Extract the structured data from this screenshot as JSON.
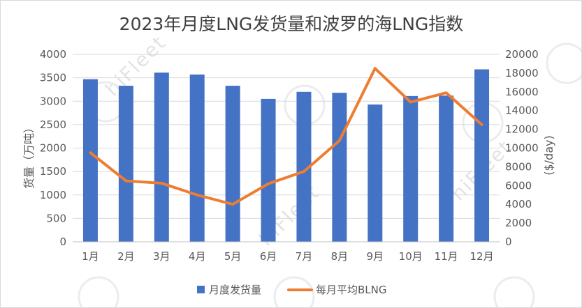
{
  "chart_data": {
    "type": "bar",
    "title": "2023年月度LNG发货量和波罗的海LNG指数",
    "categories": [
      "1月",
      "2月",
      "3月",
      "4月",
      "5月",
      "6月",
      "7月",
      "8月",
      "9月",
      "10月",
      "11月",
      "12月"
    ],
    "series": [
      {
        "name": "月度发货量",
        "type": "bar",
        "axis": "left",
        "color": "#4472C4",
        "values": [
          3470,
          3330,
          3610,
          3570,
          3330,
          3050,
          3200,
          3180,
          2930,
          3110,
          3120,
          3680
        ]
      },
      {
        "name": "每月平均BLNG",
        "type": "line",
        "axis": "right",
        "color": "#ED7D31",
        "values": [
          9500,
          6500,
          6250,
          5000,
          4000,
          6200,
          7500,
          10800,
          18500,
          14900,
          15900,
          12500
        ]
      }
    ],
    "ylabel": "货量（万吨）",
    "y2label": "($/day)",
    "ylim": [
      0,
      4000
    ],
    "y2lim": [
      0,
      20000
    ],
    "yticks": [
      "0",
      "500",
      "1000",
      "1500",
      "2000",
      "2500",
      "3000",
      "3500",
      "4000"
    ],
    "y2ticks": [
      "0",
      "2000",
      "4000",
      "6000",
      "8000",
      "10000",
      "12000",
      "14000",
      "16000",
      "18000",
      "20000"
    ],
    "grid": true,
    "legend_position": "bottom"
  },
  "watermark": {
    "text": "hiFleet"
  }
}
